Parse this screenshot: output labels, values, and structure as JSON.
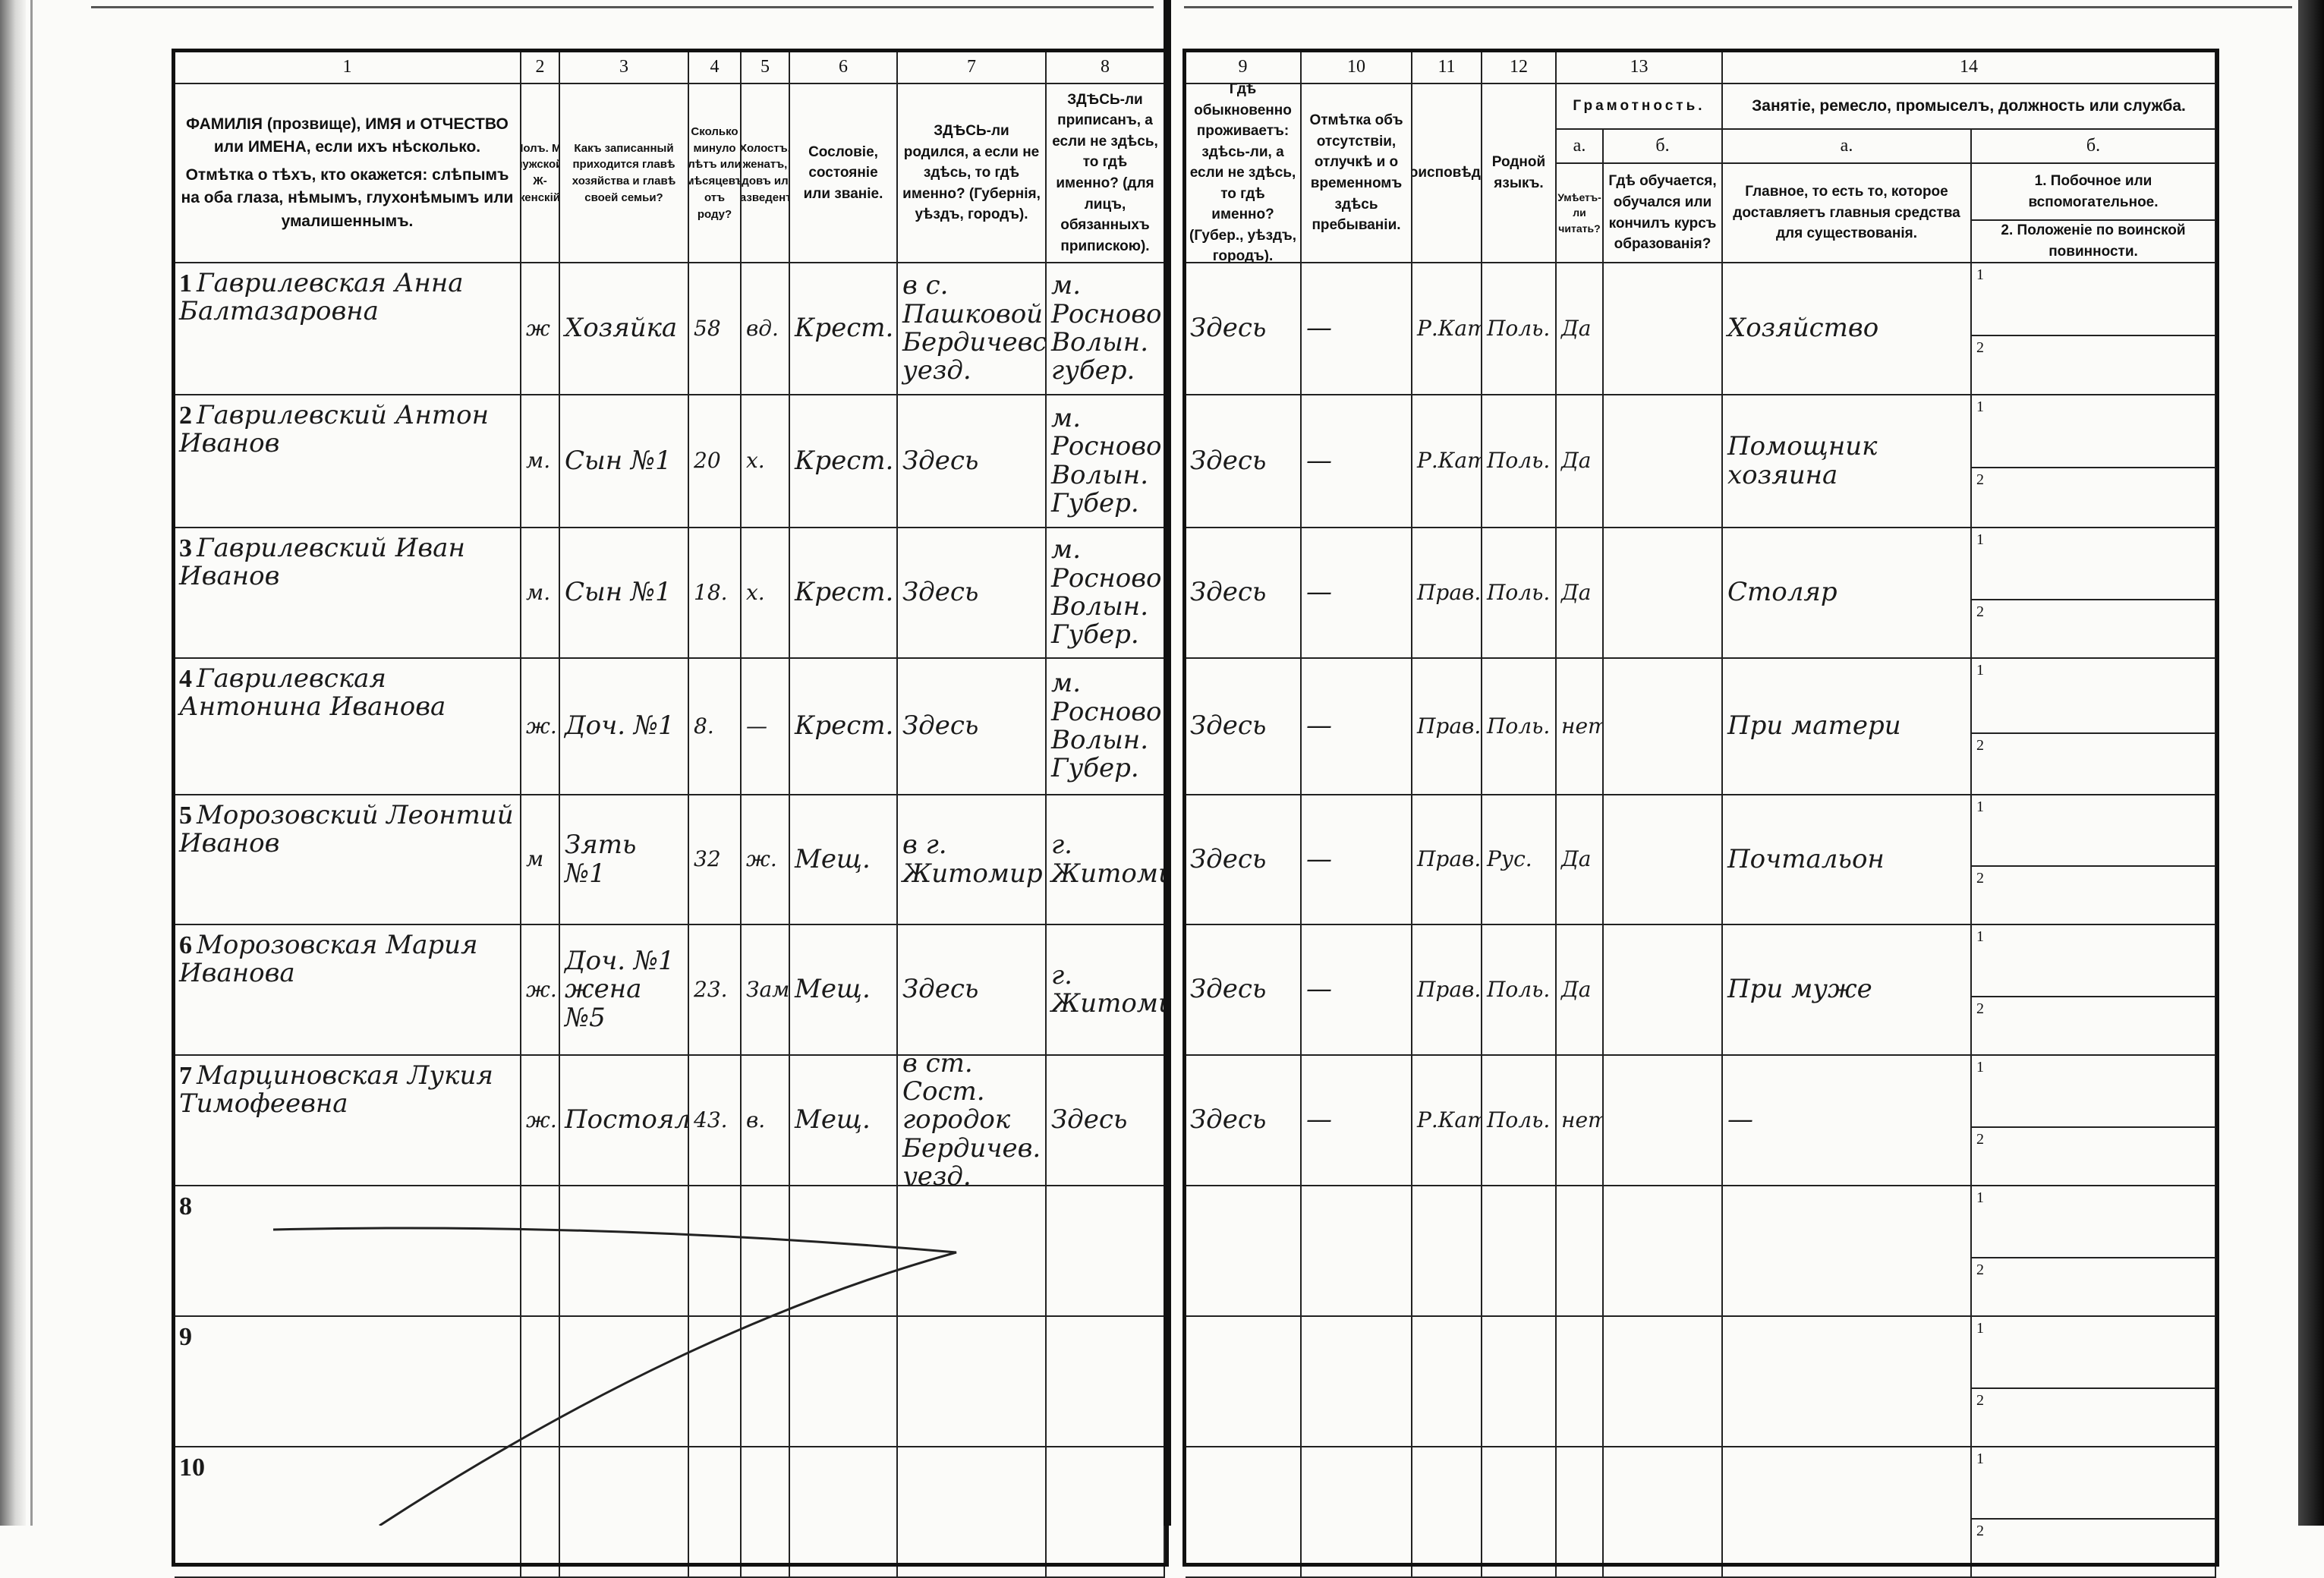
{
  "header": {
    "col_numbers": [
      "1",
      "2",
      "3",
      "4",
      "5",
      "6",
      "7",
      "8",
      "9",
      "10",
      "11",
      "12",
      "13",
      "14"
    ],
    "col1_a": "ФАМИЛІЯ (прозвище), ИМЯ и ОТЧЕСТВО или ИМЕНА, если ихъ нѣсколько.",
    "col1_b": "Отмѣтка о тѣхъ, кто окажется: слѣпымъ на оба глаза, нѣмымъ, глухонѣмымъ или умалишеннымъ.",
    "col2": "Полъ. М-мужской. Ж-женскій.",
    "col3": "Какъ записанный приходится главѣ хозяйства и главѣ своей семьи?",
    "col4": "Сколько минуло лѣтъ или мѣсяцевъ отъ роду?",
    "col5": "Холостъ, женатъ, вдовъ или разведенъ.",
    "col6": "Сословіе, состояніе или званіе.",
    "col7": "ЗДѢСЬ-ли родился, а если не здѣсь, то гдѣ именно? (Губернія, уѣздъ, городъ).",
    "col8": "ЗДѢСЬ-ли приписанъ, а если не здѣсь, то гдѣ именно? (для лицъ, обязанныхъ припискою).",
    "col9": "Гдѣ обыкновенно проживаетъ: здѣсь-ли, а если не здѣсь, то гдѣ именно? (Губер., уѣздъ, городъ).",
    "col10": "Отмѣтка объ отсутствіи, отлучкѣ и о временномъ здѣсь пребываніи.",
    "col11": "Вѣроисповѣданіе.",
    "col12": "Родной языкъ.",
    "col13_title": "Грамотность.",
    "col13_a_label": "а.",
    "col13_b_label": "б.",
    "col13_a": "Умѣетъ-ли читать?",
    "col13_b": "Гдѣ обучается, обучался или кончилъ курсъ образованія?",
    "col14_title": "Занятіе, ремесло, промыселъ, должность или служба.",
    "col14_a_label": "а.",
    "col14_b_label": "б.",
    "col14_a": "Главное, то есть то, которое доставляетъ главныя средства для существованія.",
    "col14_b1": "1. Побочное или вспомогательное.",
    "col14_b2": "2. Положеніе по воинской повинности."
  },
  "sub_labels": [
    "1",
    "2"
  ],
  "rows": [
    {
      "n": "1",
      "name": "Гаврилевская Анна Балтазаровна",
      "cells": [
        "ж",
        "Хозяйка",
        "58",
        "вд.",
        "Крест.",
        "в с. Пашковой Бердичевск. уезд.",
        "м. Росново Волын. губер.",
        "Здесь",
        "—",
        "Р.Кат.",
        "Поль.",
        "Да",
        "",
        "Хозяйство"
      ]
    },
    {
      "n": "2",
      "name": "Гаврилевский Антон Иванов",
      "cells": [
        "м.",
        "Сын №1",
        "20",
        "х.",
        "Крест.",
        "Здесь",
        "м. Росново Волын. Губер.",
        "Здесь",
        "—",
        "Р.Кат.",
        "Поль.",
        "Да",
        "",
        "Помощник хозяина"
      ]
    },
    {
      "n": "3",
      "name": "Гаврилевский Иван Иванов",
      "cells": [
        "м.",
        "Сын №1",
        "18.",
        "х.",
        "Крест.",
        "Здесь",
        "м. Росново Волын. Губер.",
        "Здесь",
        "—",
        "Прав.",
        "Поль.",
        "Да",
        "",
        "Столяр"
      ]
    },
    {
      "n": "4",
      "name": "Гаврилевская Антонина Иванова",
      "cells": [
        "ж.",
        "Доч. №1",
        "8.",
        "—",
        "Крест.",
        "Здесь",
        "м. Росново Волын. Губер.",
        "Здесь",
        "—",
        "Прав.",
        "Поль.",
        "нет",
        "",
        "При матери"
      ]
    },
    {
      "n": "5",
      "name": "Морозовский Леонтий Иванов",
      "cells": [
        "м",
        "Зять №1",
        "32",
        "ж.",
        "Мещ.",
        "в г. Житомир",
        "г. Житомир",
        "Здесь",
        "—",
        "Прав.",
        "Рус.",
        "Да",
        "",
        "Почтальон"
      ]
    },
    {
      "n": "6",
      "name": "Морозовская Мария Иванова",
      "cells": [
        "ж.",
        "Доч. №1 жена №5",
        "23.",
        "Зам.",
        "Мещ.",
        "Здесь",
        "г. Житомир",
        "Здесь",
        "—",
        "Прав.",
        "Поль.",
        "Да",
        "",
        "При муже"
      ]
    },
    {
      "n": "7",
      "name": "Марциновская Лукия Тимофеевна",
      "cells": [
        "ж.",
        "Постоялица",
        "43.",
        "в.",
        "Мещ.",
        "в ст. Сост. городок Бердичев. уезд.",
        "Здесь",
        "Здесь",
        "—",
        "Р.Кат.",
        "Поль.",
        "нет",
        "",
        "—"
      ]
    },
    {
      "n": "8",
      "name": "",
      "cells": [
        "",
        "",
        "",
        "",
        "",
        "",
        "",
        "",
        "",
        "",
        "",
        "",
        "",
        ""
      ]
    },
    {
      "n": "9",
      "name": "",
      "cells": [
        "",
        "",
        "",
        "",
        "",
        "",
        "",
        "",
        "",
        "",
        "",
        "",
        "",
        ""
      ]
    },
    {
      "n": "10",
      "name": "",
      "cells": [
        "",
        "",
        "",
        "",
        "",
        "",
        "",
        "",
        "",
        "",
        "",
        "",
        "",
        ""
      ]
    }
  ]
}
